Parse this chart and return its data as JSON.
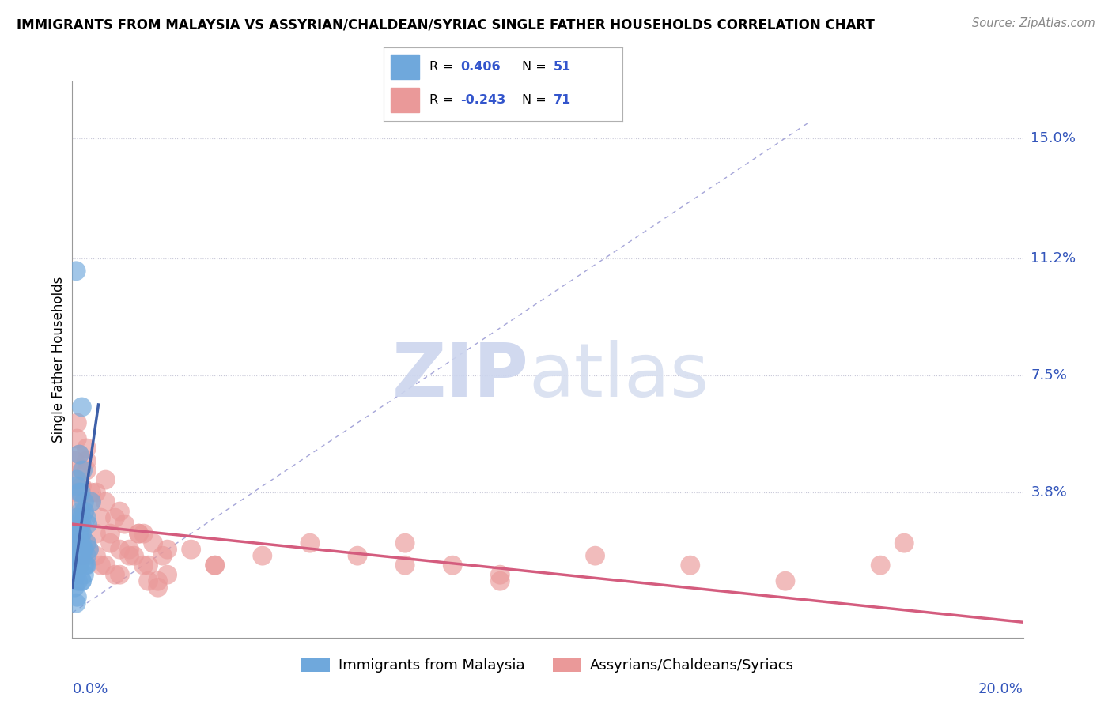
{
  "title": "IMMIGRANTS FROM MALAYSIA VS ASSYRIAN/CHALDEAN/SYRIAC SINGLE FATHER HOUSEHOLDS CORRELATION CHART",
  "source": "Source: ZipAtlas.com",
  "ylabel": "Single Father Households",
  "ytick_labels": [
    "3.8%",
    "7.5%",
    "11.2%",
    "15.0%"
  ],
  "ytick_values": [
    0.038,
    0.075,
    0.112,
    0.15
  ],
  "xlim": [
    0.0,
    0.2
  ],
  "ylim": [
    -0.008,
    0.168
  ],
  "blue_color": "#6fa8dc",
  "pink_color": "#ea9999",
  "trend_blue": "#3d5fa8",
  "trend_pink": "#d45c7e",
  "diag_color": "#8888cc",
  "grid_color": "#c8c8d8",
  "legend_r1_label": "R =",
  "legend_r1_val": "0.406",
  "legend_r1_n_label": "N =",
  "legend_r1_n_val": "51",
  "legend_r2_label": "R =",
  "legend_r2_val": "-0.243",
  "legend_r2_n_label": "N =",
  "legend_r2_n_val": "71",
  "blue_scatter_x": [
    0.0005,
    0.0008,
    0.001,
    0.0012,
    0.0015,
    0.0018,
    0.002,
    0.0022,
    0.0025,
    0.003,
    0.0008,
    0.001,
    0.0015,
    0.002,
    0.0025,
    0.003,
    0.0005,
    0.001,
    0.0012,
    0.0018,
    0.002,
    0.0022,
    0.0028,
    0.0032,
    0.0035,
    0.004,
    0.0015,
    0.002,
    0.0025,
    0.001,
    0.0008,
    0.0015,
    0.002,
    0.0012,
    0.0025,
    0.003,
    0.0018,
    0.0022,
    0.001,
    0.0008,
    0.0005,
    0.002,
    0.0015,
    0.003,
    0.001,
    0.0025,
    0.0018,
    0.002,
    0.0012,
    0.0008,
    0.0005
  ],
  "blue_scatter_y": [
    0.022,
    0.108,
    0.018,
    0.028,
    0.015,
    0.032,
    0.025,
    0.02,
    0.035,
    0.03,
    0.012,
    0.04,
    0.015,
    0.065,
    0.02,
    0.018,
    0.008,
    0.025,
    0.01,
    0.038,
    0.022,
    0.045,
    0.015,
    0.028,
    0.02,
    0.035,
    0.05,
    0.03,
    0.012,
    0.042,
    0.018,
    0.025,
    0.01,
    0.022,
    0.032,
    0.015,
    0.028,
    0.02,
    0.005,
    0.018,
    0.012,
    0.025,
    0.038,
    0.022,
    0.03,
    0.015,
    0.02,
    0.01,
    0.025,
    0.003,
    0.018
  ],
  "pink_scatter_x": [
    0.0005,
    0.0008,
    0.001,
    0.0012,
    0.0015,
    0.0018,
    0.002,
    0.0022,
    0.0025,
    0.003,
    0.0035,
    0.004,
    0.005,
    0.006,
    0.007,
    0.008,
    0.009,
    0.01,
    0.011,
    0.012,
    0.013,
    0.014,
    0.015,
    0.016,
    0.017,
    0.018,
    0.019,
    0.02,
    0.025,
    0.03,
    0.0008,
    0.001,
    0.0015,
    0.002,
    0.003,
    0.004,
    0.005,
    0.006,
    0.007,
    0.008,
    0.009,
    0.01,
    0.012,
    0.014,
    0.016,
    0.018,
    0.06,
    0.07,
    0.08,
    0.09,
    0.0005,
    0.001,
    0.002,
    0.003,
    0.005,
    0.007,
    0.01,
    0.015,
    0.02,
    0.03,
    0.04,
    0.05,
    0.07,
    0.09,
    0.11,
    0.13,
    0.15,
    0.17,
    0.001,
    0.003,
    0.175
  ],
  "pink_scatter_y": [
    0.025,
    0.03,
    0.022,
    0.035,
    0.015,
    0.028,
    0.04,
    0.018,
    0.032,
    0.045,
    0.02,
    0.038,
    0.025,
    0.015,
    0.035,
    0.022,
    0.03,
    0.012,
    0.028,
    0.02,
    0.018,
    0.025,
    0.015,
    0.01,
    0.022,
    0.008,
    0.018,
    0.012,
    0.02,
    0.015,
    0.042,
    0.038,
    0.05,
    0.028,
    0.022,
    0.035,
    0.018,
    0.03,
    0.015,
    0.025,
    0.012,
    0.02,
    0.018,
    0.025,
    0.015,
    0.01,
    0.018,
    0.022,
    0.015,
    0.01,
    0.048,
    0.055,
    0.045,
    0.052,
    0.038,
    0.042,
    0.032,
    0.025,
    0.02,
    0.015,
    0.018,
    0.022,
    0.015,
    0.012,
    0.018,
    0.015,
    0.01,
    0.015,
    0.06,
    0.048,
    0.022
  ]
}
